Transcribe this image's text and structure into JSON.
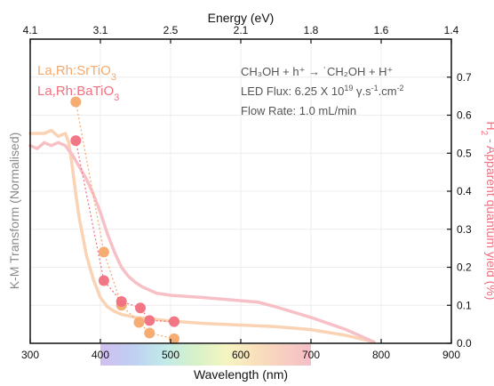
{
  "chart_data": {
    "type": "line",
    "top_axis": {
      "title": "Energy (eV)",
      "ticks": [
        {
          "label": "4.1",
          "wavelength": 300
        },
        {
          "label": "3.1",
          "wavelength": 400
        },
        {
          "label": "2.5",
          "wavelength": 500
        },
        {
          "label": "2.1",
          "wavelength": 600
        },
        {
          "label": "1.8",
          "wavelength": 700
        },
        {
          "label": "1.6",
          "wavelength": 800
        },
        {
          "label": "1.4",
          "wavelength": 900
        }
      ]
    },
    "x_axis": {
      "title": "Wavelength (nm)",
      "range": [
        300,
        900
      ],
      "ticks": [
        300,
        400,
        500,
        600,
        700,
        800,
        900
      ],
      "tick_labels": [
        "300",
        "400",
        "500",
        "600",
        "700",
        "800",
        "900"
      ],
      "spectrum_band": [
        400,
        700
      ]
    },
    "left_axis": {
      "title": "K-M Transform (Normalised)",
      "range": [
        0,
        1
      ],
      "ticks_shown": false
    },
    "right_axis": {
      "title": "H₂ - Apparent quantum yield (%)",
      "range": [
        0,
        0.8
      ],
      "ticks": [
        0.0,
        0.1,
        0.2,
        0.3,
        0.4,
        0.5,
        0.6,
        0.7
      ],
      "tick_labels": [
        "0.0",
        "0.1",
        "0.2",
        "0.3",
        "0.4",
        "0.5",
        "0.6",
        "0.7"
      ]
    },
    "grid": true,
    "legend_placement": "top-left",
    "series": [
      {
        "name": "La,Rh:SrTiO₃",
        "color": "#f6a96b",
        "line_color": "#f9d3b4",
        "km_spectrum": [
          [
            300,
            0.69
          ],
          [
            310,
            0.69
          ],
          [
            320,
            0.69
          ],
          [
            330,
            0.7
          ],
          [
            340,
            0.68
          ],
          [
            350,
            0.69
          ],
          [
            355,
            0.66
          ],
          [
            360,
            0.58
          ],
          [
            365,
            0.49
          ],
          [
            370,
            0.41
          ],
          [
            375,
            0.35
          ],
          [
            380,
            0.29
          ],
          [
            385,
            0.25
          ],
          [
            390,
            0.21
          ],
          [
            400,
            0.15
          ],
          [
            410,
            0.12
          ],
          [
            420,
            0.105
          ],
          [
            430,
            0.095
          ],
          [
            440,
            0.09
          ],
          [
            450,
            0.085
          ],
          [
            475,
            0.08
          ],
          [
            500,
            0.073
          ],
          [
            550,
            0.065
          ],
          [
            600,
            0.06
          ],
          [
            650,
            0.055
          ],
          [
            700,
            0.045
          ],
          [
            750,
            0.026
          ],
          [
            790,
            0.004
          ]
        ],
        "aqy_points": [
          [
            365,
            0.635
          ],
          [
            405,
            0.24
          ],
          [
            430,
            0.1
          ],
          [
            455,
            0.055
          ],
          [
            470,
            0.027
          ],
          [
            505,
            0.012
          ]
        ]
      },
      {
        "name": "La,Rh:BaTiO₃",
        "color": "#f07080",
        "line_color": "#f7c0c6",
        "km_spectrum": [
          [
            300,
            0.65
          ],
          [
            310,
            0.64
          ],
          [
            320,
            0.66
          ],
          [
            330,
            0.65
          ],
          [
            340,
            0.66
          ],
          [
            350,
            0.65
          ],
          [
            360,
            0.62
          ],
          [
            365,
            0.6
          ],
          [
            370,
            0.58
          ],
          [
            380,
            0.54
          ],
          [
            390,
            0.49
          ],
          [
            400,
            0.43
          ],
          [
            410,
            0.36
          ],
          [
            420,
            0.3
          ],
          [
            430,
            0.25
          ],
          [
            440,
            0.22
          ],
          [
            450,
            0.2
          ],
          [
            460,
            0.185
          ],
          [
            480,
            0.165
          ],
          [
            500,
            0.158
          ],
          [
            550,
            0.15
          ],
          [
            600,
            0.14
          ],
          [
            625,
            0.135
          ],
          [
            650,
            0.12
          ],
          [
            700,
            0.085
          ],
          [
            750,
            0.045
          ],
          [
            790,
            0.004
          ]
        ],
        "aqy_points": [
          [
            365,
            0.533
          ],
          [
            405,
            0.165
          ],
          [
            430,
            0.11
          ],
          [
            457,
            0.093
          ],
          [
            470,
            0.06
          ],
          [
            505,
            0.057
          ]
        ]
      }
    ],
    "annotations": {
      "line1": "CH₃OH + h⁺ → ˙CH₂OH + H⁺",
      "line2_prefix": "LED Flux: 6.25 X 10",
      "line2_exp": "19",
      "line2_mid": " γ.s",
      "line2_exp2": "-1",
      "line2_mid2": ".cm",
      "line2_exp3": "-2",
      "line3": "Flow Rate: 1.0 mL/min"
    },
    "legend": {
      "sr_main": "La,Rh:SrTiO",
      "sr_sub": "3",
      "ba_main": "La,Rh:BaTiO",
      "ba_sub": "3"
    },
    "right_title": {
      "prefix": "H",
      "sub": "2",
      "rest": " - Apparent quantum yield (%)"
    }
  }
}
